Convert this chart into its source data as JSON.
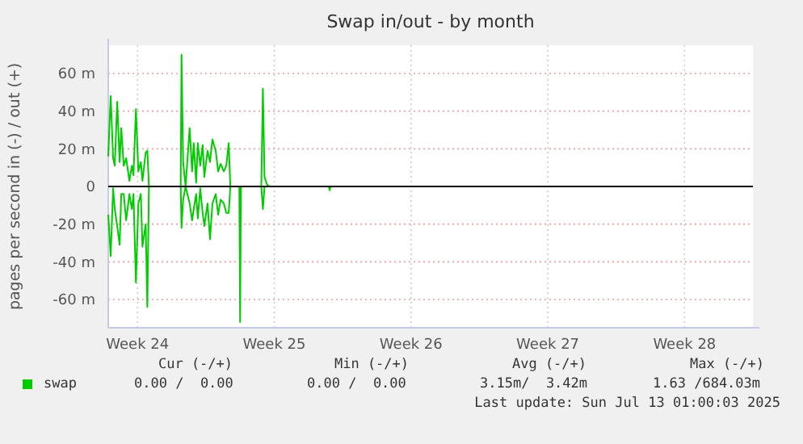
{
  "chart_data": {
    "type": "line",
    "title": "Swap in/out - by month",
    "ylabel": "pages per second in (-) / out (+)",
    "x": [
      "2025-06-10T00:00",
      "2025-06-10T03:00",
      "2025-06-10T06:00",
      "2025-06-10T08:00",
      "2025-06-10T11:00",
      "2025-06-10T14:00",
      "2025-06-10T16:00",
      "2025-06-10T19:00",
      "2025-06-10T22:00",
      "2025-06-11T02:00",
      "2025-06-11T05:00",
      "2025-06-11T07:00",
      "2025-06-11T10:00",
      "2025-06-11T13:00",
      "2025-06-11T16:00",
      "2025-06-11T18:00",
      "2025-06-11T22:00",
      "2025-06-12T00:00",
      "2025-06-12T02:00",
      "2025-06-13T17:00",
      "2025-06-13T18:00",
      "2025-06-13T20:00",
      "2025-06-13T23:00",
      "2025-06-14T04:00",
      "2025-06-14T07:00",
      "2025-06-14T09:00",
      "2025-06-14T12:00",
      "2025-06-14T14:00",
      "2025-06-14T17:00",
      "2025-06-14T20:00",
      "2025-06-14T22:00",
      "2025-06-15T02:00",
      "2025-06-15T05:00",
      "2025-06-15T08:00",
      "2025-06-15T12:00",
      "2025-06-15T15:00",
      "2025-06-15T18:00",
      "2025-06-15T22:00",
      "2025-06-16T01:00",
      "2025-06-16T04:00",
      "2025-06-16T06:00",
      "2025-06-16T17:00",
      "2025-06-16T18:00",
      "2025-06-16T19:00",
      "2025-06-17T20:00",
      "2025-06-17T22:00",
      "2025-06-18T00:00",
      "2025-06-18T03:00",
      "2025-06-18T06:00",
      "2025-06-21T07:00",
      "2025-06-21T08:00",
      "2025-06-21T09:00"
    ],
    "series": [
      {
        "name": "swap",
        "color": "#00cc00",
        "values": [
          16,
          48,
          15,
          11,
          45,
          13,
          31,
          11,
          15,
          3,
          11,
          6,
          41,
          8,
          13,
          3,
          18,
          19,
          0,
          0,
          70,
          13,
          0,
          31,
          8,
          23,
          2,
          23,
          11,
          22,
          5,
          19,
          13,
          25,
          19,
          8,
          12,
          8,
          11,
          23,
          0,
          0,
          0,
          0,
          0,
          52,
          5,
          1,
          0,
          0,
          0,
          0
        ]
      },
      {
        "color": "#00cc00",
        "values": [
          -15,
          -37,
          -1,
          -12,
          -21,
          -31,
          -4,
          -4,
          -18,
          -4,
          -12,
          -4,
          -51,
          -9,
          -4,
          -32,
          -20,
          -64,
          0,
          0,
          -22,
          -7,
          0,
          -9,
          -18,
          -12,
          -4,
          -17,
          -1,
          -14,
          -21,
          -9,
          -28,
          -9,
          -4,
          -15,
          -7,
          -9,
          -14,
          -14,
          0,
          0,
          -72,
          0,
          0,
          -12,
          0,
          0,
          0,
          0,
          -2,
          0
        ]
      }
    ],
    "xlim": [
      "2025-06-10T00:00",
      "2025-07-13T00:00"
    ],
    "xticks": [
      {
        "value": "2025-06-11T12:00",
        "label": "Week 24"
      },
      {
        "value": "2025-06-18T12:00",
        "label": "Week 25"
      },
      {
        "value": "2025-06-25T12:00",
        "label": "Week 26"
      },
      {
        "value": "2025-07-02T12:00",
        "label": "Week 27"
      },
      {
        "value": "2025-07-09T12:00",
        "label": "Week 28"
      }
    ],
    "ylim": [
      -75,
      75
    ],
    "yticks": [
      {
        "value": -60,
        "label": "-60 m"
      },
      {
        "value": -40,
        "label": "-40 m"
      },
      {
        "value": -20,
        "label": "-20 m"
      },
      0,
      {
        "value": 20,
        "label": "20 m"
      },
      {
        "value": 40,
        "label": "40 m"
      },
      {
        "value": 60,
        "label": "60 m"
      }
    ],
    "ref_lines": [
      {
        "axis": "y",
        "value": 0,
        "color": "#000000"
      }
    ],
    "grid": true,
    "legend": "bottom",
    "annotations": [
      "Cur (-/+)",
      "Min (-/+)",
      "Avg (-/+)",
      "Max (-/+)",
      "0.00 /  0.00",
      "0.00 /  0.00",
      "3.15m/  3.42m",
      "1.63 /684.03m",
      "Last update: Sun Jul 13 01:00:03 2025"
    ]
  }
}
